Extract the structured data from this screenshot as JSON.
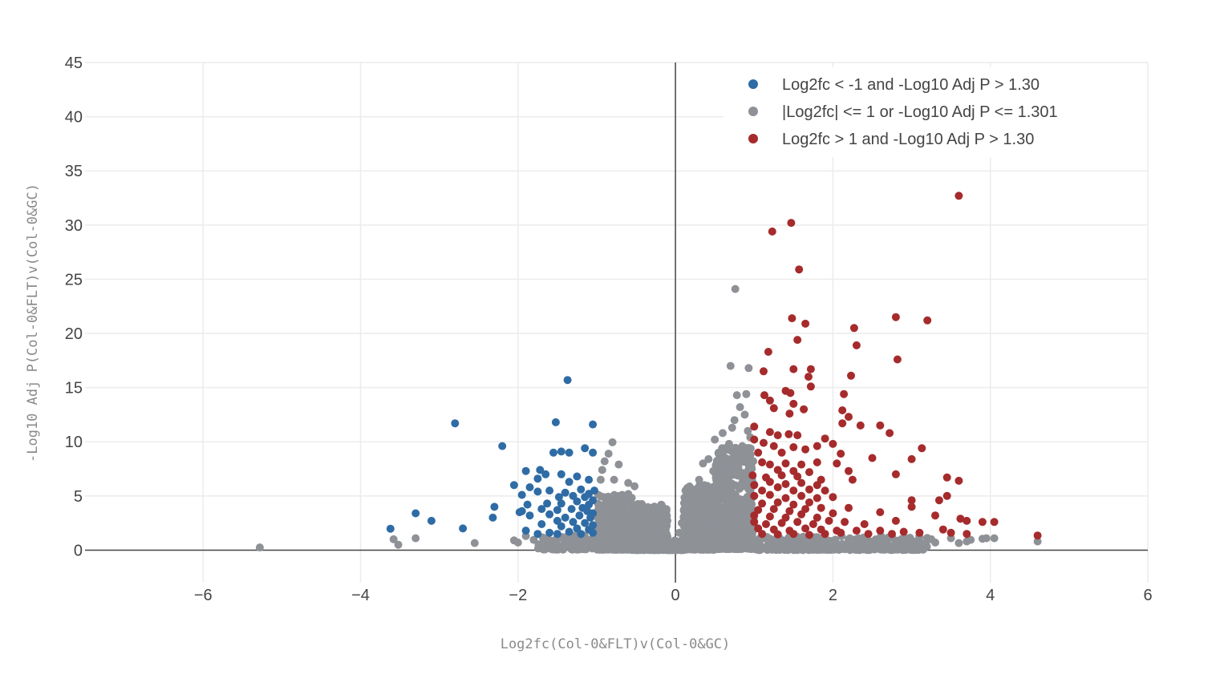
{
  "chart_data": {
    "type": "scatter",
    "title": "",
    "xlabel": "Log2fc(Col-0&FLT)v(Col-0&GC)",
    "ylabel": "-Log10 Adj P(Col-0&FLT)v(Col-0&GC)",
    "xlim": [
      -7.5,
      6
    ],
    "ylim": [
      -3,
      45
    ],
    "xticks": [
      -6,
      -4,
      -2,
      0,
      2,
      4,
      6
    ],
    "yticks": [
      0,
      5,
      10,
      15,
      20,
      25,
      30,
      35,
      40,
      45
    ],
    "xtick_labels": [
      "−6",
      "−4",
      "−2",
      "0",
      "2",
      "4",
      "6"
    ],
    "ytick_labels": [
      "0",
      "5",
      "10",
      "15",
      "20",
      "25",
      "30",
      "35",
      "40",
      "45"
    ],
    "grid": true,
    "legend_position": "top-right",
    "series": [
      {
        "name": "Log2fc < -1 and -Log10 Adj P > 1.30",
        "color": "#2f6ca5",
        "points": [
          [
            -2.8,
            11.7
          ],
          [
            -2.2,
            9.6
          ],
          [
            -1.37,
            15.7
          ],
          [
            -1.52,
            11.8
          ],
          [
            -1.05,
            11.6
          ],
          [
            -1.15,
            9.4
          ],
          [
            -1.45,
            9.1
          ],
          [
            -1.35,
            9.0
          ],
          [
            -1.55,
            9.0
          ],
          [
            -1.05,
            9.0
          ],
          [
            -1.9,
            7.3
          ],
          [
            -1.72,
            7.4
          ],
          [
            -1.65,
            7.0
          ],
          [
            -1.45,
            7.0
          ],
          [
            -1.25,
            6.8
          ],
          [
            -1.1,
            6.5
          ],
          [
            -1.75,
            6.6
          ],
          [
            -1.35,
            6.3
          ],
          [
            -2.05,
            6.0
          ],
          [
            -1.85,
            5.8
          ],
          [
            -1.6,
            5.5
          ],
          [
            -1.4,
            5.3
          ],
          [
            -1.2,
            5.6
          ],
          [
            -1.1,
            5.2
          ],
          [
            -1.75,
            5.4
          ],
          [
            -1.95,
            5.1
          ],
          [
            -1.48,
            4.9
          ],
          [
            -1.3,
            5.0
          ],
          [
            -1.15,
            4.9
          ],
          [
            -1.05,
            4.6
          ],
          [
            -1.88,
            4.2
          ],
          [
            -1.63,
            4.3
          ],
          [
            -1.45,
            4.3
          ],
          [
            -1.25,
            4.5
          ],
          [
            -1.1,
            4.2
          ],
          [
            -2.3,
            4.0
          ],
          [
            -1.95,
            3.6
          ],
          [
            -1.7,
            3.8
          ],
          [
            -1.5,
            3.7
          ],
          [
            -1.32,
            3.8
          ],
          [
            -1.18,
            3.9
          ],
          [
            -1.05,
            3.4
          ],
          [
            -1.85,
            3.2
          ],
          [
            -1.6,
            3.3
          ],
          [
            -1.4,
            3.0
          ],
          [
            -1.22,
            3.2
          ],
          [
            -1.08,
            3.0
          ],
          [
            -1.5,
            2.7
          ],
          [
            -1.3,
            2.6
          ],
          [
            -1.15,
            2.5
          ],
          [
            -1.05,
            2.3
          ],
          [
            -1.7,
            2.4
          ],
          [
            -1.45,
            2.2
          ],
          [
            -1.25,
            2.0
          ],
          [
            -1.1,
            1.9
          ],
          [
            -1.9,
            1.8
          ],
          [
            -1.6,
            1.6
          ],
          [
            -1.35,
            1.7
          ],
          [
            -1.2,
            1.5
          ],
          [
            -1.05,
            1.6
          ],
          [
            -1.75,
            1.5
          ],
          [
            -1.5,
            1.5
          ],
          [
            -3.3,
            3.4
          ],
          [
            -3.1,
            2.7
          ],
          [
            -3.62,
            1.98
          ],
          [
            -2.7,
            2.0
          ],
          [
            -2.32,
            3.0
          ],
          [
            -1.98,
            3.5
          ],
          [
            -1.03,
            5.5
          ],
          [
            -1.12,
            3.6
          ]
        ]
      },
      {
        "name": "|Log2fc| <= 1 or -Log10 Adj P <= 1.301",
        "color": "#8e9196",
        "points": [
          [
            -5.28,
            0.25
          ],
          [
            -3.58,
            1.0
          ],
          [
            -3.52,
            0.5
          ],
          [
            -3.3,
            1.1
          ],
          [
            -2.55,
            0.65
          ],
          [
            -2.05,
            0.9
          ],
          [
            -2.0,
            0.7
          ],
          [
            -1.9,
            1.3
          ],
          [
            -1.8,
            0.95
          ],
          [
            -1.6,
            0.6
          ],
          [
            -0.8,
            9.95
          ],
          [
            -0.85,
            8.9
          ],
          [
            -0.9,
            8.2
          ],
          [
            -0.72,
            7.9
          ],
          [
            -0.93,
            7.4
          ],
          [
            -0.78,
            6.5
          ],
          [
            -0.6,
            6.2
          ],
          [
            -0.52,
            5.9
          ],
          [
            -0.95,
            6.5
          ],
          [
            0.76,
            24.1
          ],
          [
            0.7,
            17.0
          ],
          [
            0.93,
            16.8
          ],
          [
            0.78,
            14.3
          ],
          [
            0.9,
            14.4
          ],
          [
            0.82,
            13.2
          ],
          [
            0.75,
            12.0
          ],
          [
            0.88,
            12.5
          ],
          [
            0.72,
            11.3
          ],
          [
            0.6,
            10.8
          ],
          [
            0.92,
            11.0
          ],
          [
            0.5,
            10.2
          ],
          [
            0.68,
            9.8
          ],
          [
            0.85,
            9.6
          ],
          [
            0.95,
            10.4
          ],
          [
            0.55,
            9.0
          ],
          [
            0.42,
            8.4
          ],
          [
            0.6,
            8.0
          ],
          [
            0.75,
            8.6
          ],
          [
            0.35,
            8.0
          ],
          [
            0.48,
            7.3
          ],
          [
            0.65,
            7.0
          ],
          [
            0.8,
            7.5
          ],
          [
            0.3,
            6.5
          ],
          [
            0.55,
            6.2
          ],
          [
            0.9,
            6.8
          ],
          [
            0.33,
            5.5
          ],
          [
            0.2,
            4.8
          ],
          [
            0.12,
            3.6
          ],
          [
            0.08,
            2.5
          ],
          [
            0.05,
            1.6
          ],
          [
            0.03,
            0.8
          ],
          [
            1.2,
            1.05
          ],
          [
            1.5,
            0.9
          ],
          [
            1.8,
            1.2
          ],
          [
            2.0,
            0.8
          ],
          [
            2.2,
            1.0
          ],
          [
            2.5,
            0.6
          ],
          [
            2.7,
            1.15
          ],
          [
            2.9,
            0.85
          ],
          [
            3.1,
            1.2
          ],
          [
            3.3,
            0.7
          ],
          [
            3.5,
            1.1
          ],
          [
            3.7,
            0.8
          ],
          [
            3.9,
            1.05
          ],
          [
            4.05,
            1.1
          ],
          [
            4.6,
            0.8
          ],
          [
            3.75,
            0.95
          ],
          [
            3.95,
            1.1
          ],
          [
            3.25,
            1.0
          ],
          [
            3.15,
            0.6
          ],
          [
            2.85,
            0.9
          ],
          [
            1.35,
            0.55
          ],
          [
            1.65,
            0.7
          ],
          [
            2.35,
            0.55
          ],
          [
            3.6,
            0.65
          ]
        ],
        "cloud": [
          {
            "x_min": -1.75,
            "x_max": -1.0,
            "y_min": 0.05,
            "y_max": 1.35,
            "count": 90
          },
          {
            "x_min": -1.0,
            "x_max": -0.55,
            "y_min": 0.05,
            "y_max": 5.2,
            "count": 400
          },
          {
            "x_min": -0.55,
            "x_max": -0.1,
            "y_min": 0.02,
            "y_max": 4.3,
            "count": 400
          },
          {
            "x_min": -0.1,
            "x_max": 0.1,
            "y_min": 0.0,
            "y_max": 0.9,
            "count": 120
          },
          {
            "x_min": 0.1,
            "x_max": 0.5,
            "y_min": 0.05,
            "y_max": 6.0,
            "count": 420
          },
          {
            "x_min": 0.5,
            "x_max": 1.0,
            "y_min": 0.1,
            "y_max": 9.5,
            "count": 520
          },
          {
            "x_min": 1.0,
            "x_max": 3.2,
            "y_min": 0.02,
            "y_max": 1.3,
            "count": 320
          }
        ]
      },
      {
        "name": "Log2fc > 1 and -Log10 Adj P > 1.30",
        "color": "#a62b2c",
        "points": [
          [
            3.6,
            32.7
          ],
          [
            1.47,
            30.2
          ],
          [
            1.23,
            29.4
          ],
          [
            1.57,
            25.9
          ],
          [
            2.8,
            21.5
          ],
          [
            3.2,
            21.2
          ],
          [
            1.48,
            21.4
          ],
          [
            1.65,
            20.9
          ],
          [
            2.27,
            20.5
          ],
          [
            1.55,
            19.4
          ],
          [
            2.3,
            18.9
          ],
          [
            1.18,
            18.3
          ],
          [
            2.82,
            17.6
          ],
          [
            1.5,
            16.7
          ],
          [
            1.12,
            16.5
          ],
          [
            1.72,
            16.7
          ],
          [
            1.69,
            16.0
          ],
          [
            2.23,
            16.1
          ],
          [
            1.72,
            15.1
          ],
          [
            1.4,
            14.7
          ],
          [
            1.46,
            14.5
          ],
          [
            1.13,
            14.3
          ],
          [
            2.14,
            14.4
          ],
          [
            1.2,
            13.8
          ],
          [
            1.5,
            13.5
          ],
          [
            1.25,
            13.1
          ],
          [
            1.63,
            13.0
          ],
          [
            2.12,
            12.9
          ],
          [
            1.45,
            12.6
          ],
          [
            2.2,
            12.3
          ],
          [
            1.0,
            11.4
          ],
          [
            2.35,
            11.5
          ],
          [
            2.6,
            11.5
          ],
          [
            2.72,
            10.8
          ],
          [
            1.2,
            10.9
          ],
          [
            1.3,
            10.6
          ],
          [
            1.44,
            10.7
          ],
          [
            1.55,
            10.6
          ],
          [
            1.0,
            10.2
          ],
          [
            1.9,
            10.3
          ],
          [
            2.12,
            11.7
          ],
          [
            2.0,
            9.8
          ],
          [
            1.12,
            9.9
          ],
          [
            1.25,
            9.6
          ],
          [
            1.5,
            9.5
          ],
          [
            1.65,
            9.3
          ],
          [
            1.8,
            9.6
          ],
          [
            3.13,
            9.4
          ],
          [
            1.05,
            9.0
          ],
          [
            1.35,
            9.0
          ],
          [
            2.1,
            8.9
          ],
          [
            3.0,
            8.4
          ],
          [
            2.5,
            8.5
          ],
          [
            1.1,
            8.1
          ],
          [
            1.2,
            7.9
          ],
          [
            1.4,
            8.0
          ],
          [
            1.6,
            7.9
          ],
          [
            1.8,
            8.1
          ],
          [
            2.05,
            8.0
          ],
          [
            1.3,
            7.4
          ],
          [
            1.5,
            7.3
          ],
          [
            1.7,
            7.2
          ],
          [
            2.2,
            7.3
          ],
          [
            2.8,
            7.0
          ],
          [
            3.45,
            6.7
          ],
          [
            0.98,
            6.9
          ],
          [
            1.15,
            6.7
          ],
          [
            1.35,
            6.9
          ],
          [
            1.55,
            6.8
          ],
          [
            1.85,
            6.5
          ],
          [
            1.0,
            6.0
          ],
          [
            1.2,
            6.3
          ],
          [
            1.4,
            6.1
          ],
          [
            1.6,
            6.2
          ],
          [
            1.8,
            6.0
          ],
          [
            2.25,
            6.5
          ],
          [
            3.6,
            6.4
          ],
          [
            1.1,
            5.5
          ],
          [
            1.3,
            5.8
          ],
          [
            1.5,
            5.5
          ],
          [
            1.7,
            5.6
          ],
          [
            1.9,
            5.5
          ],
          [
            3.45,
            5.0
          ],
          [
            1.0,
            5.0
          ],
          [
            1.2,
            5.1
          ],
          [
            1.4,
            4.8
          ],
          [
            1.6,
            5.0
          ],
          [
            1.8,
            4.8
          ],
          [
            2.0,
            4.9
          ],
          [
            3.0,
            4.6
          ],
          [
            3.35,
            4.6
          ],
          [
            1.1,
            4.3
          ],
          [
            1.3,
            4.4
          ],
          [
            1.5,
            4.2
          ],
          [
            1.7,
            4.4
          ],
          [
            1.05,
            3.7
          ],
          [
            1.25,
            3.8
          ],
          [
            1.45,
            3.6
          ],
          [
            1.65,
            3.8
          ],
          [
            1.85,
            3.9
          ],
          [
            2.2,
            3.9
          ],
          [
            3.0,
            4.0
          ],
          [
            1.0,
            3.2
          ],
          [
            1.2,
            3.1
          ],
          [
            1.4,
            3.0
          ],
          [
            1.6,
            3.3
          ],
          [
            1.8,
            3.0
          ],
          [
            2.0,
            3.4
          ],
          [
            2.6,
            3.5
          ],
          [
            3.3,
            3.2
          ],
          [
            3.62,
            2.9
          ],
          [
            3.7,
            2.7
          ],
          [
            3.9,
            2.6
          ],
          [
            4.05,
            2.6
          ],
          [
            1.0,
            2.6
          ],
          [
            1.15,
            2.4
          ],
          [
            1.35,
            2.5
          ],
          [
            1.55,
            2.6
          ],
          [
            1.75,
            2.4
          ],
          [
            1.95,
            2.7
          ],
          [
            2.15,
            2.6
          ],
          [
            2.4,
            2.4
          ],
          [
            2.8,
            2.7
          ],
          [
            1.05,
            2.0
          ],
          [
            1.25,
            1.9
          ],
          [
            1.45,
            1.8
          ],
          [
            1.65,
            2.0
          ],
          [
            1.85,
            1.9
          ],
          [
            2.05,
            1.8
          ],
          [
            2.3,
            1.8
          ],
          [
            2.6,
            1.8
          ],
          [
            2.9,
            1.7
          ],
          [
            3.1,
            1.6
          ],
          [
            3.4,
            1.9
          ],
          [
            3.5,
            1.6
          ],
          [
            3.7,
            1.5
          ],
          [
            4.6,
            1.35
          ],
          [
            1.1,
            1.5
          ],
          [
            1.3,
            1.45
          ],
          [
            1.5,
            1.5
          ],
          [
            1.7,
            1.4
          ],
          [
            1.9,
            1.5
          ],
          [
            2.1,
            1.6
          ],
          [
            2.45,
            1.5
          ],
          [
            2.75,
            1.5
          ]
        ]
      }
    ]
  }
}
